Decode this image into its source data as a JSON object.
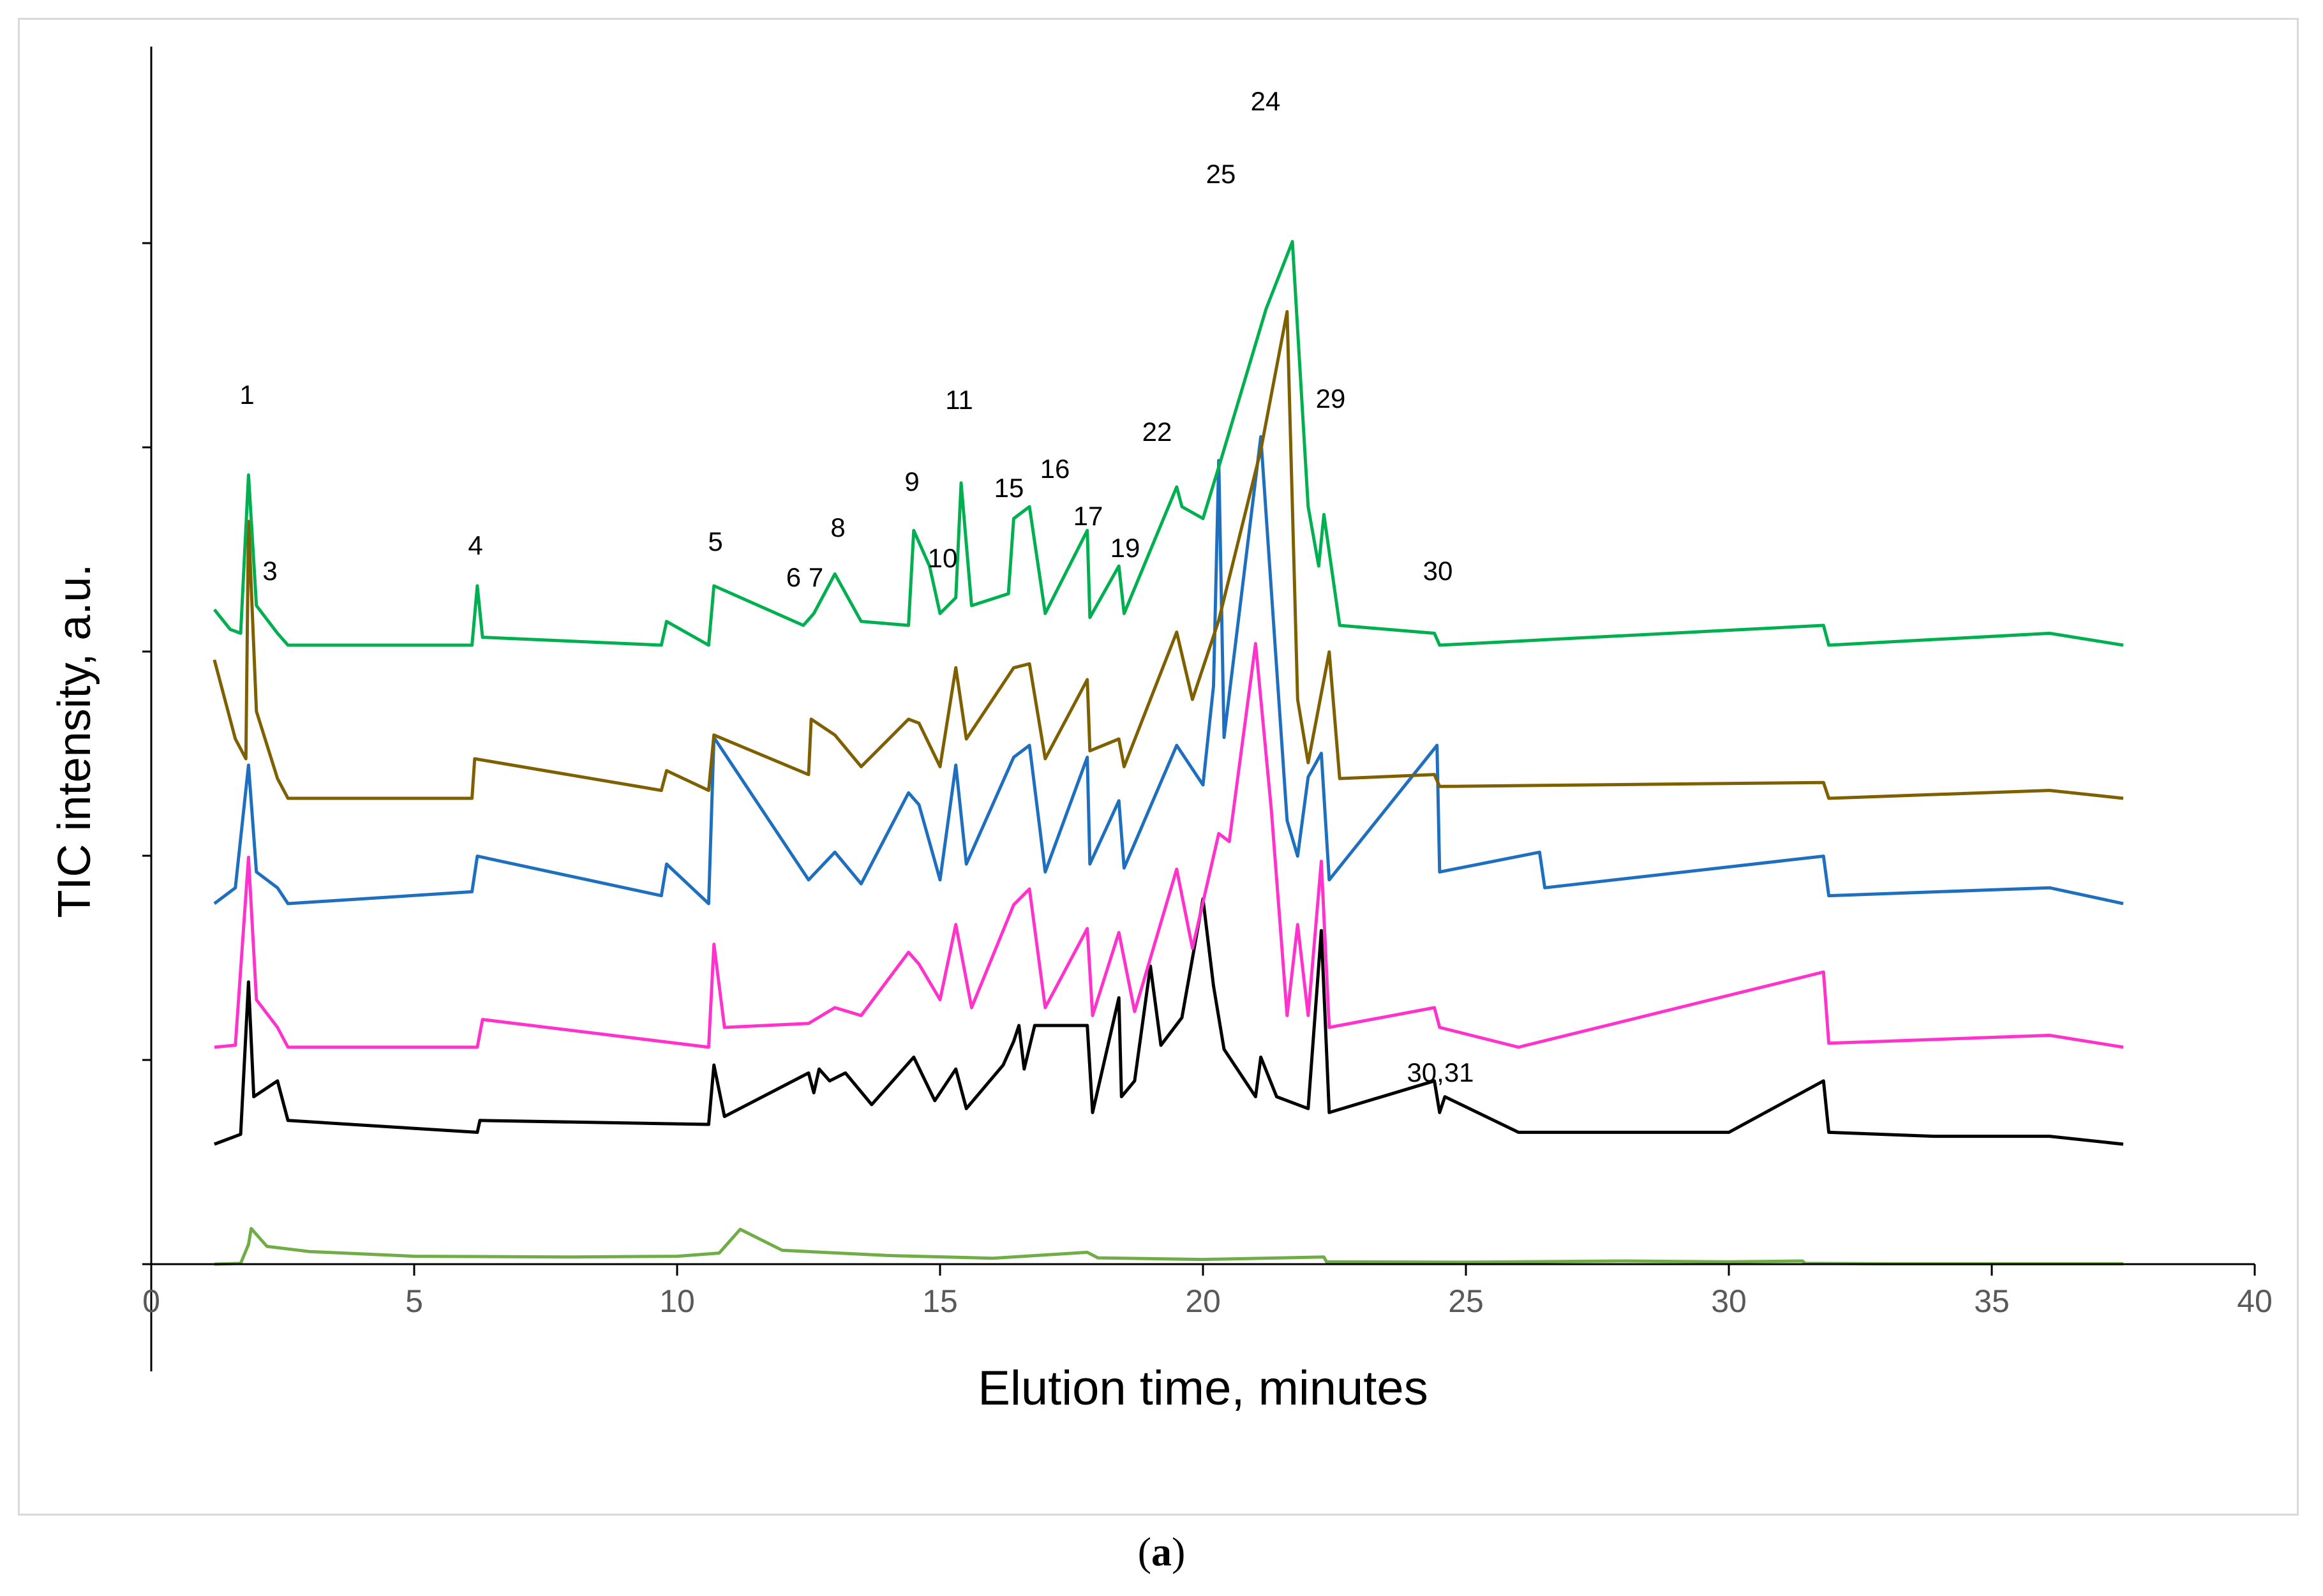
{
  "chart_data": {
    "type": "line",
    "title": "",
    "xlabel": "Elution time, minutes",
    "ylabel": "TIC intensity,  a.u.",
    "caption": "a",
    "xlim": [
      0,
      40
    ],
    "x_ticks": [
      "0",
      "5",
      "10",
      "15",
      "20",
      "25",
      "30",
      "35",
      "40"
    ],
    "y_ticks_labeled": false,
    "grid": false,
    "legend": "none",
    "series": [
      {
        "name": "trace-1-light-green",
        "color": "#70ad47",
        "baseline": 0.0,
        "x": [
          1.2,
          1.7,
          1.85,
          1.9,
          2.2,
          3.0,
          5.0,
          8.0,
          10.0,
          10.8,
          11.2,
          12.0,
          14.0,
          16.0,
          17.8,
          18.0,
          20.0,
          22.3,
          22.35,
          25.0,
          28.0,
          30.0,
          31.4,
          31.45,
          33.0,
          37.5
        ],
        "y": [
          0.0,
          0.02,
          0.5,
          0.9,
          0.45,
          0.32,
          0.2,
          0.18,
          0.2,
          0.28,
          0.88,
          0.35,
          0.22,
          0.15,
          0.3,
          0.16,
          0.12,
          0.18,
          0.06,
          0.05,
          0.08,
          0.06,
          0.08,
          0.02,
          0.01,
          0.01
        ]
      },
      {
        "name": "trace-2-black",
        "color": "#000000",
        "baseline": 0.0,
        "x": [
          1.2,
          1.7,
          1.85,
          1.95,
          2.4,
          2.6,
          6.2,
          6.25,
          10.6,
          10.7,
          10.9,
          12.5,
          12.6,
          12.7,
          12.9,
          13.2,
          13.7,
          14.5,
          14.9,
          15.3,
          15.5,
          16.2,
          16.4,
          16.5,
          16.6,
          16.8,
          17.8,
          17.9,
          18.4,
          18.45,
          18.7,
          19.0,
          19.2,
          19.6,
          20.0,
          20.2,
          20.4,
          21.0,
          21.1,
          21.4,
          22.0,
          22.25,
          22.4,
          24.4,
          24.5,
          24.6,
          26.0,
          30.0,
          31.8,
          31.9,
          33.9,
          36.1,
          37.5
        ],
        "y": [
          0.0,
          0.25,
          4.1,
          1.2,
          1.6,
          0.6,
          0.3,
          0.6,
          0.5,
          2.0,
          0.7,
          1.8,
          1.3,
          1.9,
          1.6,
          1.8,
          1.0,
          2.2,
          1.1,
          1.9,
          0.9,
          2.0,
          2.6,
          3.0,
          1.9,
          3.0,
          3.0,
          0.8,
          3.7,
          1.2,
          1.6,
          4.5,
          2.5,
          3.2,
          6.2,
          4.0,
          2.4,
          1.2,
          2.2,
          1.2,
          0.9,
          5.4,
          0.8,
          1.6,
          0.8,
          1.2,
          0.3,
          0.3,
          1.6,
          0.3,
          0.2,
          0.2,
          0.0
        ]
      },
      {
        "name": "trace-3-magenta",
        "color": "#ff33cc",
        "baseline": 0.0,
        "x": [
          1.2,
          1.6,
          1.85,
          2.0,
          2.4,
          2.6,
          6.2,
          6.3,
          10.6,
          10.7,
          10.9,
          12.5,
          13.0,
          13.5,
          14.4,
          14.6,
          15.0,
          15.3,
          15.6,
          16.4,
          16.7,
          17.0,
          17.8,
          17.9,
          18.4,
          18.7,
          19.5,
          19.8,
          20.3,
          20.5,
          21.0,
          21.3,
          21.6,
          21.8,
          22.0,
          22.25,
          22.4,
          24.4,
          24.5,
          26.0,
          31.8,
          31.9,
          36.1,
          37.5
        ],
        "y": [
          0.0,
          0.05,
          4.8,
          1.2,
          0.5,
          0.0,
          0.0,
          0.7,
          0.0,
          2.6,
          0.5,
          0.6,
          1.0,
          0.8,
          2.4,
          2.1,
          1.2,
          3.1,
          1.0,
          3.6,
          4.0,
          1.0,
          3.0,
          0.8,
          2.9,
          0.9,
          4.5,
          2.5,
          5.4,
          5.2,
          10.2,
          6.0,
          0.8,
          3.1,
          0.8,
          4.7,
          0.5,
          1.0,
          0.5,
          0.0,
          1.9,
          0.1,
          0.3,
          0.0
        ]
      },
      {
        "name": "trace-4-blue",
        "color": "#1f6fbf",
        "baseline": 0.0,
        "x": [
          1.2,
          1.6,
          1.85,
          2.0,
          2.4,
          2.6,
          6.1,
          6.2,
          9.7,
          9.8,
          10.6,
          10.7,
          12.5,
          13.0,
          13.5,
          14.4,
          14.6,
          15.0,
          15.3,
          15.5,
          16.4,
          16.7,
          17.0,
          17.8,
          17.85,
          18.4,
          18.5,
          19.5,
          20.0,
          20.2,
          20.3,
          20.4,
          21.1,
          21.6,
          21.8,
          22.0,
          22.25,
          22.4,
          24.45,
          24.5,
          26.4,
          26.5,
          31.8,
          31.9,
          36.1,
          37.5
        ],
        "y": [
          0.0,
          0.4,
          3.5,
          0.8,
          0.4,
          0.0,
          0.3,
          1.2,
          0.2,
          1.0,
          0.0,
          4.2,
          0.6,
          1.3,
          0.5,
          2.8,
          2.5,
          0.6,
          3.5,
          1.0,
          3.7,
          4.0,
          0.8,
          3.7,
          1.0,
          2.6,
          0.9,
          4.0,
          3.0,
          5.5,
          11.2,
          4.2,
          11.8,
          2.1,
          1.2,
          3.2,
          3.8,
          0.6,
          4.0,
          0.8,
          1.3,
          0.4,
          1.2,
          0.2,
          0.4,
          0.0
        ]
      },
      {
        "name": "trace-5-brown",
        "color": "#7f6000",
        "baseline": 0.0,
        "x": [
          1.2,
          1.6,
          1.8,
          1.85,
          2.0,
          2.4,
          2.6,
          6.1,
          6.15,
          9.7,
          9.8,
          10.6,
          10.7,
          12.5,
          12.55,
          13.0,
          13.5,
          14.4,
          14.6,
          15.0,
          15.3,
          15.5,
          16.4,
          16.7,
          17.0,
          17.8,
          17.85,
          18.4,
          18.5,
          19.5,
          19.8,
          20.3,
          21.1,
          21.6,
          21.8,
          22.0,
          22.4,
          22.6,
          24.4,
          24.5,
          31.8,
          31.9,
          36.1,
          37.5
        ],
        "y": [
          3.5,
          1.5,
          1.0,
          7.0,
          2.2,
          0.5,
          0.0,
          0.0,
          1.0,
          0.2,
          0.7,
          0.2,
          1.6,
          0.6,
          2.0,
          1.6,
          0.8,
          2.0,
          1.9,
          0.8,
          3.3,
          1.5,
          3.3,
          3.4,
          1.0,
          3.0,
          1.2,
          1.5,
          0.8,
          4.2,
          2.5,
          4.5,
          8.8,
          12.3,
          2.5,
          0.9,
          3.7,
          0.5,
          0.6,
          0.3,
          0.4,
          0.0,
          0.2,
          0.0
        ]
      },
      {
        "name": "trace-6-green",
        "color": "#00b050",
        "baseline": 0.0,
        "x": [
          1.2,
          1.5,
          1.7,
          1.85,
          2.0,
          2.4,
          2.6,
          6.1,
          6.2,
          6.3,
          9.7,
          9.8,
          10.6,
          10.7,
          12.4,
          12.6,
          13.0,
          13.5,
          14.4,
          14.5,
          14.8,
          15.0,
          15.3,
          15.4,
          15.6,
          16.3,
          16.4,
          16.7,
          17.0,
          17.8,
          17.85,
          18.4,
          18.5,
          19.5,
          19.6,
          20.0,
          20.3,
          21.2,
          21.7,
          22.0,
          22.2,
          22.3,
          22.6,
          24.4,
          24.5,
          31.8,
          31.9,
          36.1,
          37.5
        ],
        "y": [
          0.9,
          0.4,
          0.3,
          4.3,
          1.0,
          0.3,
          0.0,
          0.0,
          1.5,
          0.2,
          0.0,
          0.6,
          0.0,
          1.5,
          0.5,
          0.8,
          1.8,
          0.6,
          0.5,
          2.9,
          2.0,
          0.8,
          1.2,
          4.1,
          1.0,
          1.3,
          3.2,
          3.5,
          0.8,
          2.9,
          0.7,
          2.0,
          0.8,
          4.0,
          3.5,
          3.2,
          4.5,
          8.5,
          10.2,
          3.5,
          2.0,
          3.3,
          0.5,
          0.3,
          0.0,
          0.5,
          0.0,
          0.3,
          0.0
        ]
      }
    ],
    "annotations": [
      "1",
      "3",
      "4",
      "5",
      "6 7",
      "8",
      "9",
      "10",
      "11",
      "15",
      "16",
      "17",
      "19",
      "22",
      "24",
      "25",
      "29",
      "30",
      "30,31"
    ]
  }
}
